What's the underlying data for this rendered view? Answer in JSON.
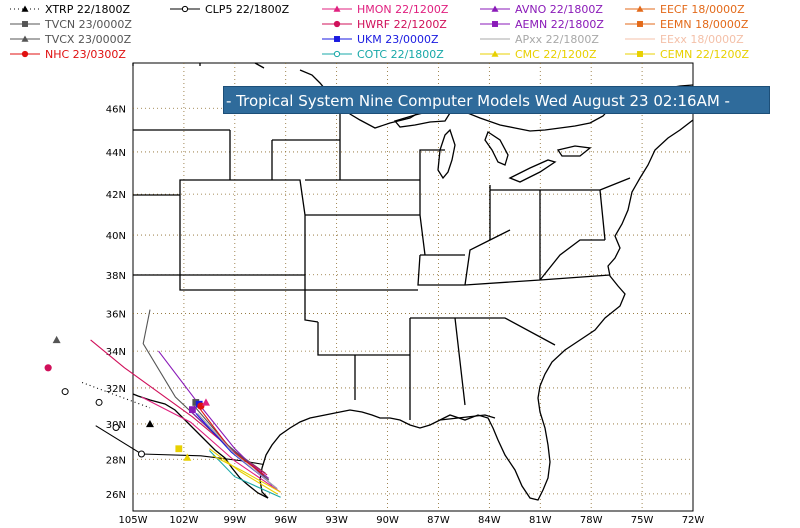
{
  "banner_title": "- Tropical System Nine Computer Models Wed August 23 02:16AM -",
  "legend": [
    {
      "label": "XTRP",
      "time": "22/1800Z",
      "color": "#000000",
      "marker": "triangle",
      "dashed": true
    },
    {
      "label": "CLP5",
      "time": "22/1800Z",
      "color": "#000000",
      "marker": "circle-open"
    },
    {
      "label": "HMON",
      "time": "22/1200Z",
      "color": "#e0207f",
      "marker": "triangle"
    },
    {
      "label": "AVNO",
      "time": "22/1800Z",
      "color": "#8a1ab8",
      "marker": "triangle"
    },
    {
      "label": "EECF",
      "time": "18/0000Z",
      "color": "#e36a1a",
      "marker": "triangle"
    },
    {
      "label": "TVCN",
      "time": "23/0000Z",
      "color": "#555555",
      "marker": "square"
    },
    {
      "label": "HWRF",
      "time": "22/1200Z",
      "color": "#d0105a",
      "marker": "circle"
    },
    {
      "label": "AEMN",
      "time": "22/1800Z",
      "color": "#8a1ab8",
      "marker": "square"
    },
    {
      "label": "EEMN",
      "time": "18/0000Z",
      "color": "#e36a1a",
      "marker": "square"
    },
    {
      "label": "TVCX",
      "time": "23/0000Z",
      "color": "#555555",
      "marker": "triangle"
    },
    {
      "label": "UKM",
      "time": "23/0000Z",
      "color": "#1a1ae0",
      "marker": "square"
    },
    {
      "label": "APxx",
      "time": "22/1800Z",
      "color": "#a8a8a8",
      "marker": "none"
    },
    {
      "label": "EExx",
      "time": "18/0000Z",
      "color": "#f4c0a8",
      "marker": "none"
    },
    {
      "label": "NHC",
      "time": "23/0300Z",
      "color": "#e01010",
      "marker": "circle"
    },
    {
      "label": "COTC",
      "time": "22/1800Z",
      "color": "#18a8a8",
      "marker": "circle-open"
    },
    {
      "label": "CMC",
      "time": "22/1200Z",
      "color": "#e8d000",
      "marker": "triangle"
    },
    {
      "label": "CEMN",
      "time": "22/1200Z",
      "color": "#e8d000",
      "marker": "square"
    }
  ],
  "lat_ticks": [
    "46N",
    "44N",
    "42N",
    "40N",
    "38N",
    "36N",
    "34N",
    "32N",
    "30N",
    "28N",
    "26N"
  ],
  "lon_ticks": [
    "105W",
    "102W",
    "99W",
    "96W",
    "93W",
    "90W",
    "87W",
    "84W",
    "81W",
    "78W",
    "75W",
    "72W"
  ],
  "map_extent": {
    "lon_min": -105,
    "lon_max": -72,
    "lat_min": 25,
    "lat_max": 48
  },
  "tracks": [
    {
      "model": "XTRP",
      "color": "#000000",
      "dashed": true,
      "points": [
        [
          -108.0,
          32.3
        ],
        [
          -106.0,
          31.6
        ],
        [
          -104.0,
          30.9
        ]
      ]
    },
    {
      "model": "CLP5",
      "color": "#000000",
      "points": [
        [
          -97.3,
          27.7
        ],
        [
          -98.5,
          27.9
        ],
        [
          -101.0,
          28.2
        ],
        [
          -104.5,
          28.3
        ],
        [
          -107.2,
          29.9
        ]
      ]
    },
    {
      "model": "TVCX",
      "color": "#555555",
      "points": [
        [
          -97.2,
          27.2
        ],
        [
          -99.5,
          28.8
        ],
        [
          -102.5,
          31.5
        ],
        [
          -104.4,
          34.4
        ],
        [
          -104.0,
          36.2
        ]
      ]
    },
    {
      "model": "HWRF",
      "color": "#d0105a",
      "points": [
        [
          -97.1,
          27.1
        ],
        [
          -99.0,
          28.4
        ],
        [
          -101.5,
          30.4
        ],
        [
          -105.5,
          33.1
        ],
        [
          -107.5,
          34.6
        ]
      ]
    },
    {
      "model": "HMON",
      "color": "#e0207f",
      "points": [
        [
          -96.3,
          26.1
        ],
        [
          -99.0,
          27.9
        ],
        [
          -101.6,
          30.1
        ],
        [
          -104.5,
          31.5
        ]
      ]
    },
    {
      "model": "AVNO",
      "color": "#8a1ab8",
      "points": [
        [
          -96.8,
          26.5
        ],
        [
          -99.0,
          28.6
        ],
        [
          -101.2,
          31.2
        ],
        [
          -103.5,
          34.0
        ]
      ]
    },
    {
      "model": "AEMN",
      "color": "#8a1ab8",
      "points": [
        [
          -97.0,
          26.9
        ],
        [
          -99.2,
          28.6
        ],
        [
          -101.7,
          30.8
        ]
      ]
    },
    {
      "model": "UKM",
      "color": "#1a1ae0",
      "points": [
        [
          -96.5,
          26.3
        ],
        [
          -99.2,
          28.4
        ],
        [
          -101.3,
          30.6
        ]
      ]
    },
    {
      "model": "TVCN",
      "color": "#555555",
      "points": [
        [
          -97.0,
          26.8
        ],
        [
          -99.4,
          28.8
        ],
        [
          -101.4,
          31.0
        ]
      ]
    },
    {
      "model": "NHC",
      "color": "#e01010",
      "points": [
        [
          -97.3,
          27.1
        ],
        [
          -99.2,
          28.5
        ],
        [
          -101.1,
          30.9
        ]
      ]
    },
    {
      "model": "COTC",
      "color": "#18a8a8",
      "points": [
        [
          -96.3,
          25.8
        ],
        [
          -99.0,
          27.0
        ],
        [
          -100.5,
          28.5
        ]
      ]
    },
    {
      "model": "CMC",
      "color": "#e8d000",
      "points": [
        [
          -96.5,
          26.0
        ],
        [
          -98.7,
          27.3
        ],
        [
          -100.5,
          28.6
        ]
      ]
    },
    {
      "model": "CEMN",
      "color": "#e8d000",
      "points": [
        [
          -96.3,
          26.1
        ],
        [
          -98.5,
          27.3
        ],
        [
          -100.3,
          28.2
        ]
      ]
    },
    {
      "model": "APxx",
      "color": "#a8a8a8",
      "points": [
        [
          -96.5,
          26.3
        ],
        [
          -99.0,
          28.3
        ],
        [
          -101.2,
          30.6
        ]
      ]
    }
  ],
  "markers": [
    {
      "model": "XTRP",
      "shape": "triangle",
      "color": "#000000",
      "lon": -104.0,
      "lat": 30.0
    },
    {
      "model": "CLP5",
      "shape": "circle-open",
      "color": "#000000",
      "lon": -104.5,
      "lat": 28.3
    },
    {
      "model": "CLP5",
      "shape": "circle-open",
      "color": "#000000",
      "lon": -106.0,
      "lat": 29.8
    },
    {
      "model": "CLP5",
      "shape": "circle-open",
      "color": "#000000",
      "lon": -107.0,
      "lat": 31.2
    },
    {
      "model": "XTRP",
      "shape": "circle-open",
      "color": "#000000",
      "lon": -109.0,
      "lat": 31.8
    },
    {
      "model": "TVCX",
      "shape": "triangle",
      "color": "#555555",
      "lon": -109.5,
      "lat": 34.6
    },
    {
      "model": "HWRF",
      "shape": "circle",
      "color": "#d0105a",
      "lon": -110.0,
      "lat": 33.1
    },
    {
      "model": "AEMN",
      "shape": "square",
      "color": "#8a1ab8",
      "lon": -101.5,
      "lat": 30.8
    },
    {
      "model": "TVCN",
      "shape": "square",
      "color": "#555555",
      "lon": -101.3,
      "lat": 31.2
    },
    {
      "model": "UKM",
      "shape": "square",
      "color": "#1a1ae0",
      "lon": -101.1,
      "lat": 31.1
    },
    {
      "model": "NHC",
      "shape": "circle",
      "color": "#e01010",
      "lon": -101.0,
      "lat": 31.0
    },
    {
      "model": "HMON",
      "shape": "triangle",
      "color": "#e0207f",
      "lon": -100.7,
      "lat": 31.2
    },
    {
      "model": "CEMN",
      "shape": "square",
      "color": "#e8d000",
      "lon": -102.3,
      "lat": 28.6
    },
    {
      "model": "CMC",
      "shape": "triangle",
      "color": "#e8d000",
      "lon": -101.8,
      "lat": 28.1
    }
  ]
}
